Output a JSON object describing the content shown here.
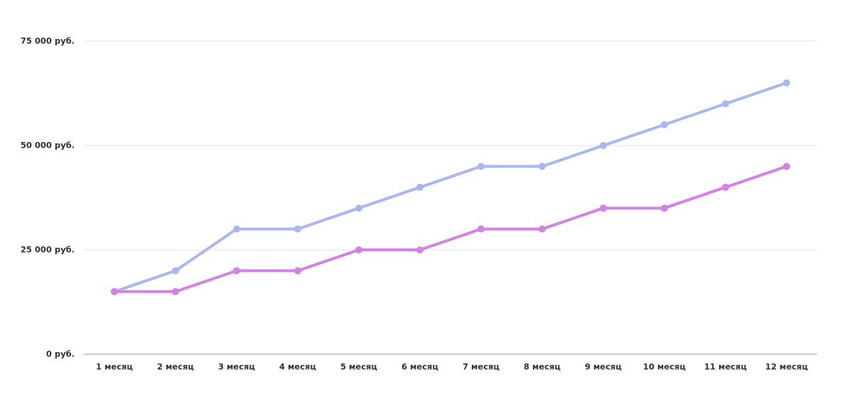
{
  "chart_data": {
    "type": "line",
    "categories": [
      "1 месяц",
      "2 месяц",
      "3 месяц",
      "4 месяц",
      "5 месяц",
      "6 месяц",
      "7 месяц",
      "8 месяц",
      "9 месяц",
      "10 месяц",
      "11 месяц",
      "12 месяц"
    ],
    "series": [
      {
        "color": "#a8b6f4",
        "values": [
          15000,
          20000,
          30000,
          30000,
          35000,
          40000,
          45000,
          45000,
          50000,
          55000,
          60000,
          65000
        ]
      },
      {
        "color": "#d67ee9",
        "values": [
          15000,
          15000,
          20000,
          20000,
          25000,
          25000,
          30000,
          30000,
          35000,
          35000,
          40000,
          45000
        ]
      }
    ],
    "ylim": [
      0,
      75000
    ],
    "yticks": [
      {
        "value": 0,
        "label": "0 руб."
      },
      {
        "value": 25000,
        "label": "25 000 руб."
      },
      {
        "value": 50000,
        "label": "50 000 руб."
      },
      {
        "value": 75000,
        "label": "75 000 руб."
      }
    ],
    "grid": true
  }
}
